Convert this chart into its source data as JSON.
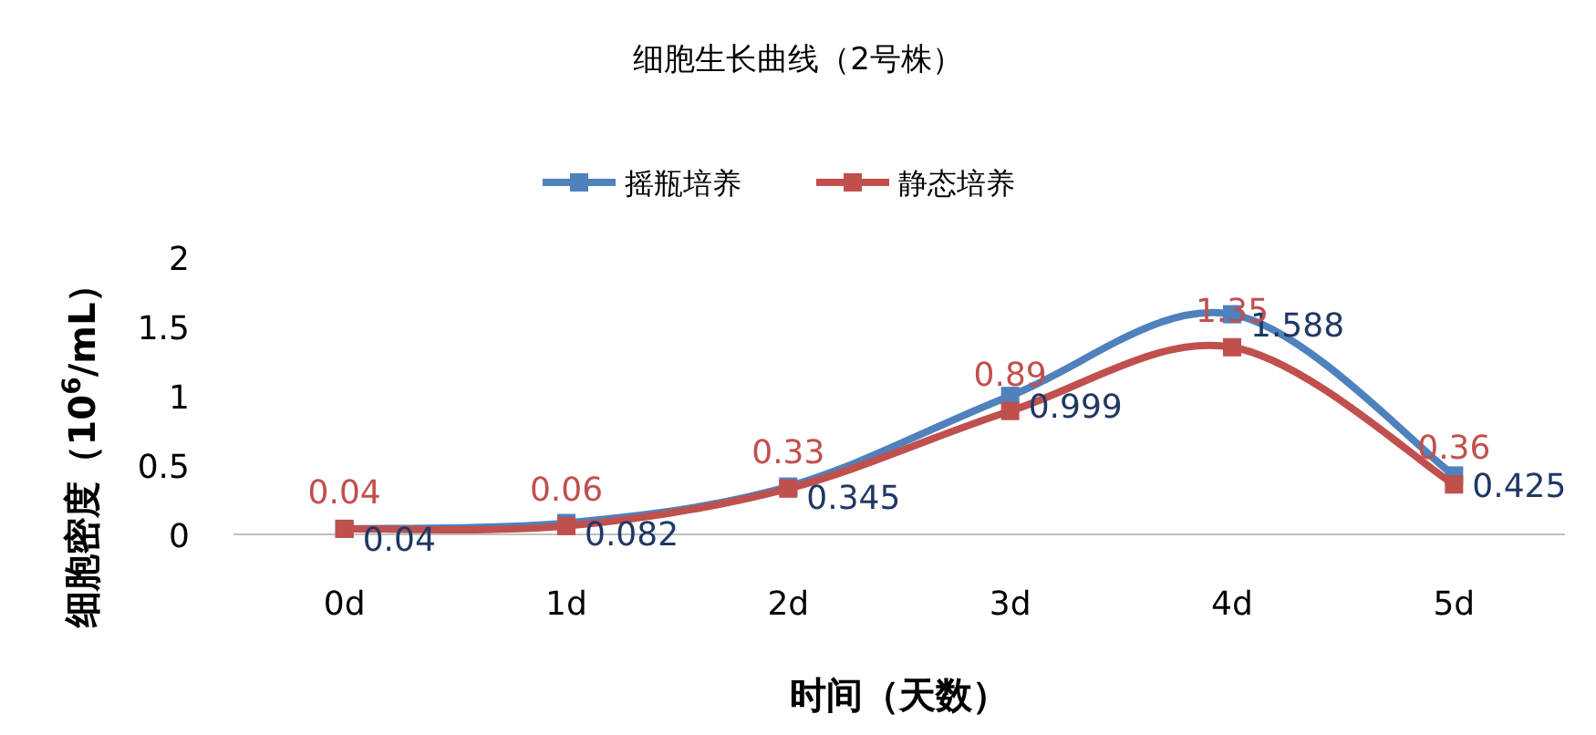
{
  "chart_data": {
    "type": "line",
    "title": "细胞生长曲线（2号株）",
    "xlabel": "时间（天数）",
    "ylabel": "细胞密度（10$^{6}$/mL）",
    "categories": [
      "0d",
      "1d",
      "2d",
      "3d",
      "4d",
      "5d"
    ],
    "series": [
      {
        "name": "摇瓶培养",
        "color": "#4f81bd",
        "values": [
          0.04,
          0.082,
          0.345,
          0.999,
          1.588,
          0.425
        ]
      },
      {
        "name": "静态培养",
        "color": "#c0504d",
        "values": [
          0.04,
          0.06,
          0.33,
          0.89,
          1.35,
          0.36
        ]
      }
    ],
    "ylim": [
      0,
      2
    ],
    "yticks": [
      0,
      0.5,
      1,
      1.5,
      2
    ],
    "data_labels": true,
    "legend": "top",
    "marker": "square",
    "line_style": "solid",
    "grid": false
  }
}
